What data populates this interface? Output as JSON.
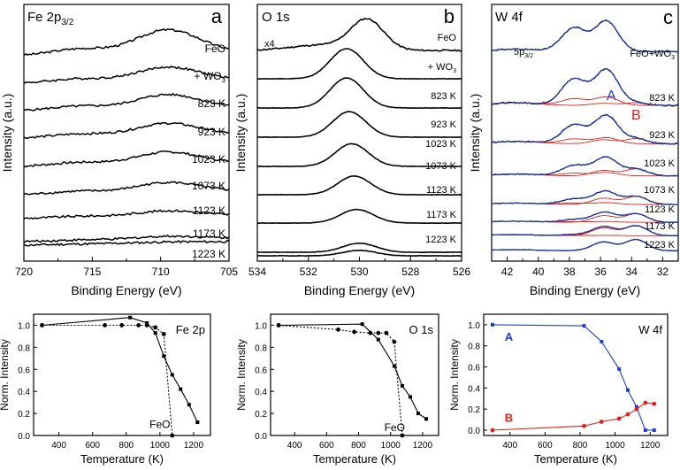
{
  "chart_data": [
    {
      "type": "line",
      "panel": "a",
      "title": "Fe 2p3/2",
      "xlabel": "Binding Energy (eV)",
      "ylabel": "Intensity (a.u.)",
      "xlim": [
        720,
        705
      ],
      "xticks": [
        "720",
        "715",
        "710",
        "705"
      ],
      "tick_values": [
        720,
        715,
        710,
        705
      ],
      "peak_eV": 709.5,
      "series_labels": [
        "FeO",
        "+ WO3",
        "823 K",
        "923 K",
        "1023 K",
        "1073 K",
        "1123 K",
        "1173 K",
        "1223 K"
      ],
      "peak_heights": [
        0.95,
        0.55,
        0.55,
        0.5,
        0.48,
        0.4,
        0.22,
        0.12,
        0.03
      ]
    },
    {
      "type": "line",
      "panel": "b",
      "title": "O 1s",
      "scale_note": "x4",
      "xlabel": "Binding Energy (eV)",
      "ylabel": "Intensity (a.u.)",
      "xlim": [
        534,
        526
      ],
      "xticks": [
        "534",
        "532",
        "530",
        "528",
        "526"
      ],
      "tick_values": [
        534,
        532,
        530,
        528,
        526
      ],
      "series_labels": [
        "FeO",
        "+ WO3",
        "823 K",
        "923 K",
        "1023 K",
        "1073 K",
        "1123 K",
        "1173 K",
        "1223 K"
      ],
      "peak_eV": [
        529.7,
        530.5,
        530.5,
        530.4,
        530.3,
        530.2,
        530.1,
        530.0,
        530.0
      ],
      "peak_heights": [
        1.0,
        1.0,
        1.0,
        0.85,
        0.75,
        0.62,
        0.45,
        0.3,
        0.18
      ]
    },
    {
      "type": "line",
      "panel": "c",
      "title": "W 4f",
      "xlabel": "Binding Energy (eV)",
      "ylabel": "Intensity (a.u.)",
      "xlim": [
        43,
        31
      ],
      "xticks": [
        "42",
        "40",
        "38",
        "36",
        "34",
        "32"
      ],
      "tick_values": [
        42,
        40,
        38,
        36,
        34,
        32
      ],
      "series_labels": [
        "FeO+WO3",
        "823 K",
        "923 K",
        "1023 K",
        "1073 K",
        "1123 K",
        "1173 K",
        "1223 K"
      ],
      "annotations": [
        "5p3/2",
        "A",
        "B"
      ],
      "component_A_eV": [
        35.6,
        37.7
      ],
      "component_B_eV": [
        33.7,
        35.8
      ],
      "A_heights": [
        1.0,
        1.0,
        0.85,
        0.58,
        0.4,
        0.25,
        0.12,
        0.0
      ],
      "B_heights": [
        0.0,
        0.08,
        0.18,
        0.3,
        0.45,
        0.6,
        0.8,
        0.9
      ]
    },
    {
      "type": "line",
      "panel": "Fe 2p trend",
      "label": "Fe 2p",
      "xlabel": "Temperature (K)",
      "ylabel": "Norm. Intensity",
      "xlim": [
        250,
        1300
      ],
      "ylim": [
        0,
        1.1
      ],
      "xticks": [
        "400",
        "600",
        "800",
        "1000",
        "1200"
      ],
      "yticks": [
        "0.0",
        "0.2",
        "0.4",
        "0.6",
        "0.8",
        "1.0"
      ],
      "series": [
        {
          "name": "solid",
          "x": [
            300,
            823,
            923,
            973,
            1023,
            1073,
            1123,
            1173,
            1223
          ],
          "y": [
            1.0,
            1.07,
            1.02,
            0.93,
            0.72,
            0.55,
            0.42,
            0.28,
            0.12
          ]
        },
        {
          "name": "FeO",
          "x": [
            300,
            673,
            773,
            873,
            923,
            973,
            1023,
            1073
          ],
          "y": [
            1.0,
            1.0,
            1.0,
            1.0,
            1.0,
            0.98,
            0.92,
            0.0
          ]
        }
      ],
      "annotations": [
        "FeO"
      ]
    },
    {
      "type": "line",
      "panel": "O 1s trend",
      "label": "O 1s",
      "xlabel": "Temperature (K)",
      "ylabel": "Norm. Intensity",
      "xlim": [
        250,
        1300
      ],
      "ylim": [
        0,
        1.1
      ],
      "xticks": [
        "400",
        "600",
        "800",
        "1000",
        "1200"
      ],
      "yticks": [
        "0.0",
        "0.2",
        "0.4",
        "0.6",
        "0.8",
        "1.0"
      ],
      "series": [
        {
          "name": "solid",
          "x": [
            300,
            823,
            923,
            1023,
            1073,
            1123,
            1173,
            1223
          ],
          "y": [
            1.0,
            1.01,
            0.87,
            0.63,
            0.45,
            0.35,
            0.2,
            0.15
          ]
        },
        {
          "name": "FeO",
          "x": [
            300,
            673,
            773,
            873,
            923,
            973,
            1023,
            1073
          ],
          "y": [
            1.0,
            0.96,
            0.94,
            0.93,
            0.93,
            0.93,
            0.85,
            0.0
          ]
        }
      ],
      "annotations": [
        "FeO"
      ]
    },
    {
      "type": "line",
      "panel": "W 4f trend",
      "label": "W 4f",
      "xlabel": "Temperature (K)",
      "ylabel": "Norm. Intensity",
      "xlim": [
        250,
        1300
      ],
      "ylim": [
        -0.05,
        1.1
      ],
      "xticks": [
        "400",
        "600",
        "800",
        "1000",
        "1200"
      ],
      "yticks": [
        "0.0",
        "0.2",
        "0.4",
        "0.6",
        "0.8",
        "1.0"
      ],
      "series": [
        {
          "name": "A",
          "color": "#1f3fd0",
          "x": [
            300,
            823,
            923,
            1023,
            1073,
            1123,
            1173,
            1223
          ],
          "y": [
            1.0,
            0.99,
            0.84,
            0.58,
            0.38,
            0.22,
            0.0,
            0.0
          ]
        },
        {
          "name": "B",
          "color": "#e0201c",
          "x": [
            300,
            823,
            923,
            1023,
            1073,
            1123,
            1173,
            1223
          ],
          "y": [
            0.0,
            0.04,
            0.08,
            0.11,
            0.15,
            0.2,
            0.26,
            0.25
          ]
        }
      ],
      "annotations": [
        "A",
        "B"
      ]
    }
  ],
  "panel_letters": [
    "a",
    "b",
    "c"
  ],
  "colors": {
    "A": "#1f3fd0",
    "B": "#e0201c",
    "data": "#000000",
    "fit": "#e0201c",
    "envelope": "#1f3fd0"
  }
}
